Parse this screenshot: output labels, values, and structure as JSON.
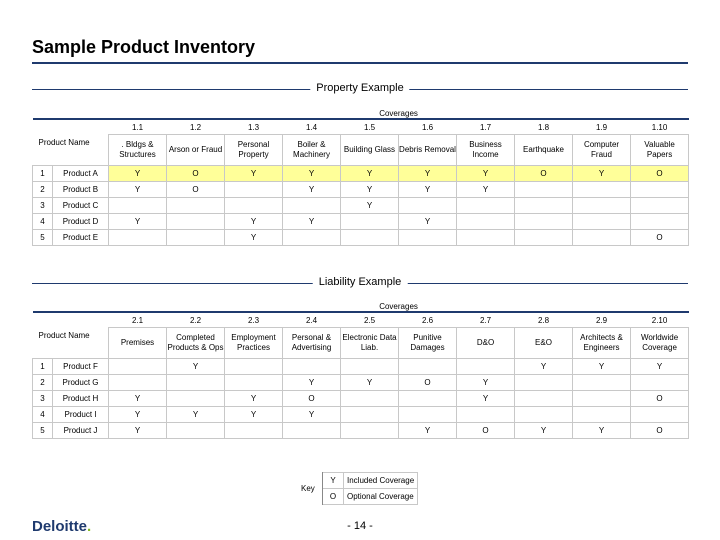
{
  "title": "Sample Product Inventory",
  "product_name_header": "Product Name",
  "coverages_label": "Coverages",
  "property": {
    "heading": "Property Example",
    "codes": [
      "1.1",
      "1.2",
      "1.3",
      "1.4",
      "1.5",
      "1.6",
      "1.7",
      "1.8",
      "1.9",
      "1.10"
    ],
    "descriptions": [
      ". Bldgs & Structures",
      "Arson or Fraud",
      "Personal Property",
      "Boiler & Machinery",
      "Building Glass",
      "Debris Removal",
      "Business Income",
      "Earthquake",
      "Computer Fraud",
      "Valuable Papers"
    ],
    "rows": [
      {
        "num": "1",
        "name": "Product A",
        "cells": [
          "Y",
          "O",
          "Y",
          "Y",
          "Y",
          "Y",
          "Y",
          "O",
          "Y",
          "O"
        ]
      },
      {
        "num": "2",
        "name": "Product B",
        "cells": [
          "Y",
          "O",
          "",
          "Y",
          "Y",
          "Y",
          "Y",
          "",
          "",
          ""
        ]
      },
      {
        "num": "3",
        "name": "Product C",
        "cells": [
          "",
          "",
          "",
          "",
          "Y",
          "",
          "",
          "",
          "",
          ""
        ]
      },
      {
        "num": "4",
        "name": "Product D",
        "cells": [
          "Y",
          "",
          "Y",
          "Y",
          "",
          "Y",
          "",
          "",
          "",
          ""
        ]
      },
      {
        "num": "5",
        "name": "Product E",
        "cells": [
          "",
          "",
          "Y",
          "",
          "",
          "",
          "",
          "",
          "",
          "O"
        ]
      }
    ]
  },
  "liability": {
    "heading": "Liability Example",
    "codes": [
      "2.1",
      "2.2",
      "2.3",
      "2.4",
      "2.5",
      "2.6",
      "2.7",
      "2.8",
      "2.9",
      "2.10"
    ],
    "descriptions": [
      "Premises",
      "Completed Products & Ops",
      "Employment Practices",
      "Personal & Advertising",
      "Electronic Data Liab.",
      "Punitive Damages",
      "D&O",
      "E&O",
      "Architects & Engineers",
      "Worldwide Coverage"
    ],
    "rows": [
      {
        "num": "1",
        "name": "Product F",
        "cells": [
          "",
          "Y",
          "",
          "",
          "",
          "",
          "",
          "Y",
          "Y",
          "Y"
        ]
      },
      {
        "num": "2",
        "name": "Product G",
        "cells": [
          "",
          "",
          "",
          "Y",
          "Y",
          "O",
          "Y",
          "",
          "",
          ""
        ]
      },
      {
        "num": "3",
        "name": "Product H",
        "cells": [
          "Y",
          "",
          "Y",
          "O",
          "",
          "",
          "Y",
          "",
          "",
          "O"
        ]
      },
      {
        "num": "4",
        "name": "Product I",
        "cells": [
          "Y",
          "Y",
          "Y",
          "Y",
          "",
          "",
          "",
          "",
          "",
          ""
        ]
      },
      {
        "num": "5",
        "name": "Product J",
        "cells": [
          "Y",
          "",
          "",
          "",
          "",
          "Y",
          "O",
          "Y",
          "Y",
          "O"
        ]
      }
    ]
  },
  "key": {
    "label": "Key",
    "items": [
      {
        "symbol": "Y",
        "text": "Included Coverage"
      },
      {
        "symbol": "O",
        "text": "Optional Coverage"
      }
    ]
  },
  "page_number": "- 14 -",
  "logo_text": "Deloitte",
  "logo_dot": ".",
  "colors": {
    "accent": "#1f3a6e",
    "highlight": "#ffff99",
    "logo_dot": "#86bc25"
  }
}
